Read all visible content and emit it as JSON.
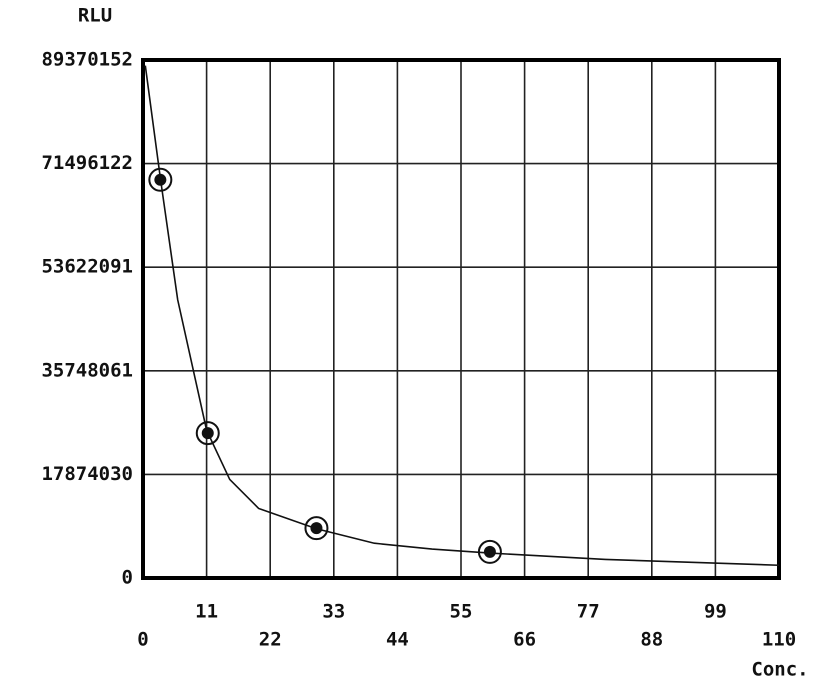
{
  "chart_data": {
    "type": "scatter",
    "y_label": "RLU",
    "x_label": "Conc.",
    "x": [
      3,
      11.2,
      30,
      60
    ],
    "values": [
      68700000,
      25000000,
      8600000,
      4500000
    ],
    "color": "#111111",
    "curve": {
      "x": [
        0.4,
        3,
        6,
        11,
        15,
        20,
        30,
        40,
        50,
        60,
        80,
        110
      ],
      "values": [
        88400000,
        69000000,
        48000000,
        25500000,
        17000000,
        12000000,
        8500000,
        6000000,
        5000000,
        4300000,
        3200000,
        2200000
      ]
    },
    "xlim": [
      0,
      110
    ],
    "xticks": [
      0,
      11,
      22,
      33,
      44,
      55,
      66,
      77,
      88,
      99,
      110
    ],
    "ylim": [
      0,
      89370152
    ],
    "yticks": [
      0,
      17874030,
      35748061,
      53622091,
      71496122,
      89370152
    ],
    "grid": true
  }
}
